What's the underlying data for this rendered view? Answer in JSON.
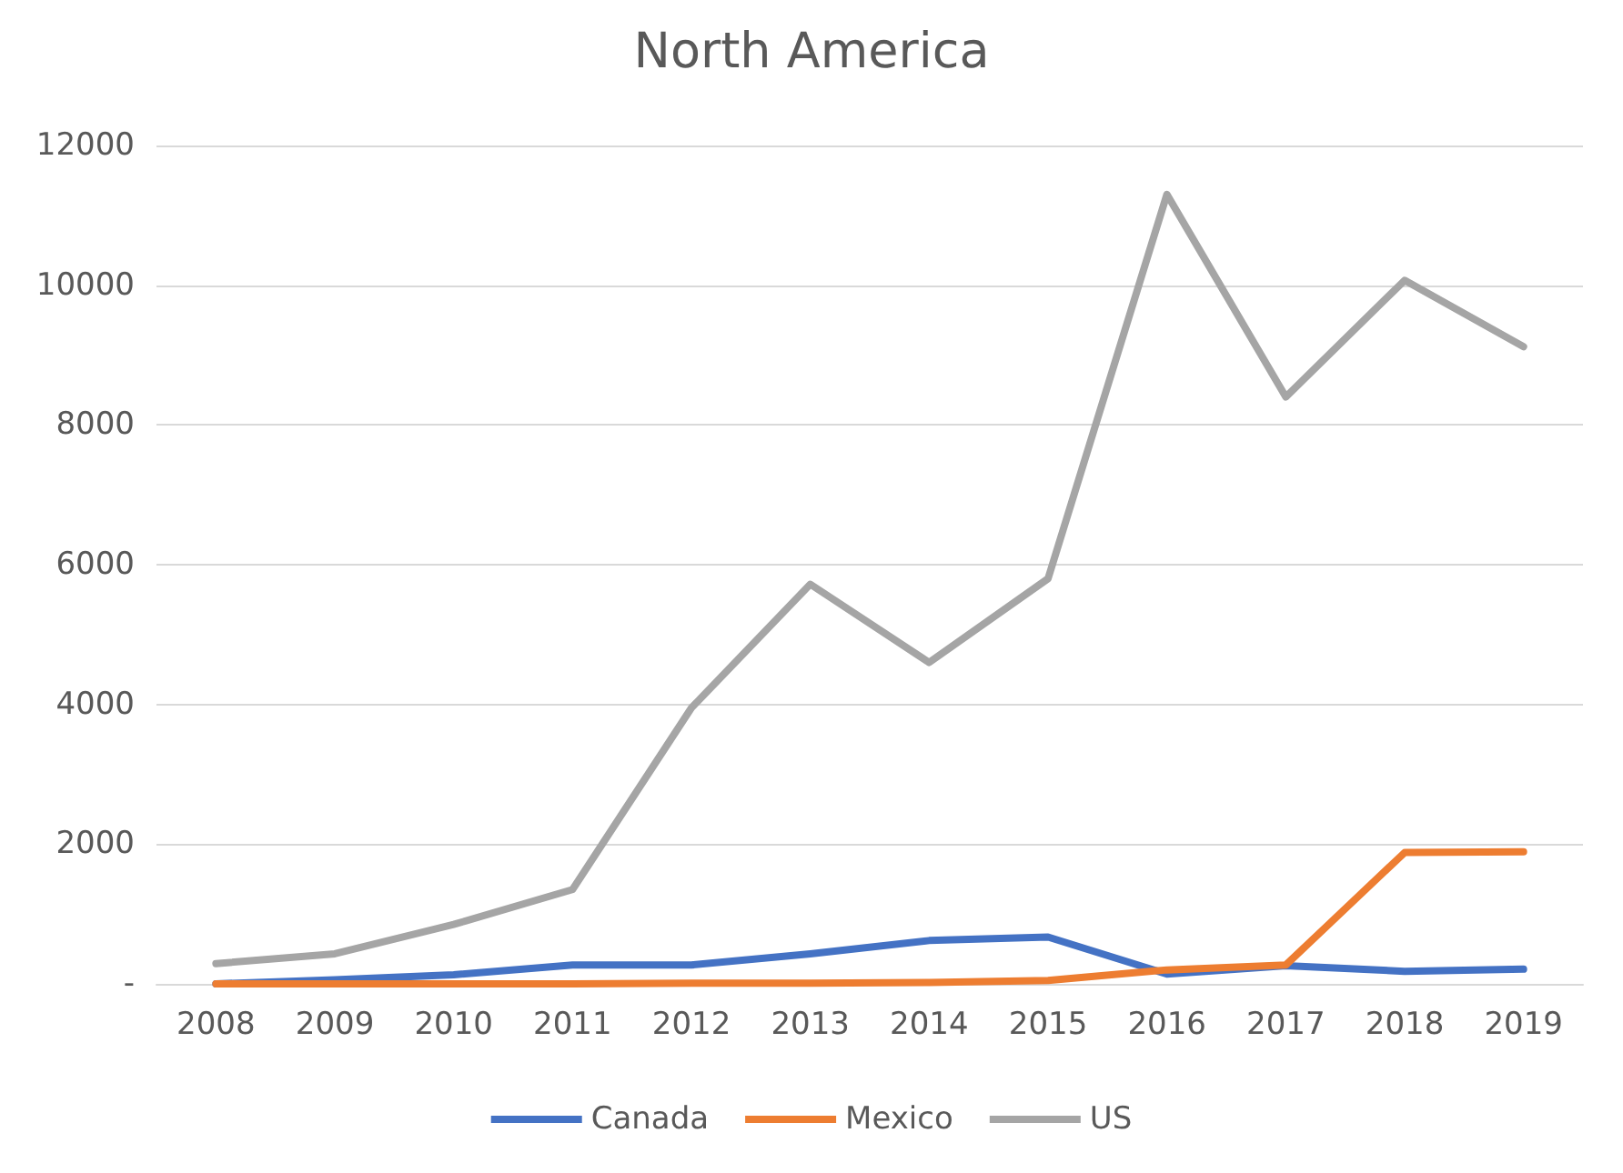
{
  "chart_data": {
    "type": "line",
    "title": "North America",
    "categories": [
      "2008",
      "2009",
      "2010",
      "2011",
      "2012",
      "2013",
      "2014",
      "2015",
      "2016",
      "2017",
      "2018",
      "2019"
    ],
    "series": [
      {
        "name": "Canada",
        "color": "#4472c4",
        "values": [
          0,
          60,
          130,
          270,
          270,
          430,
          620,
          670,
          140,
          260,
          180,
          210
        ]
      },
      {
        "name": "Mexico",
        "color": "#ed7d31",
        "values": [
          0,
          0,
          0,
          0,
          10,
          10,
          20,
          50,
          200,
          270,
          1880,
          1890
        ]
      },
      {
        "name": "US",
        "color": "#a5a5a5",
        "values": [
          290,
          430,
          850,
          1350,
          3950,
          5720,
          4600,
          5800,
          11300,
          8400,
          10070,
          9120
        ]
      }
    ],
    "ylim": [
      0,
      12000
    ],
    "yticks": [
      {
        "value": 0,
        "label": "-"
      },
      2000,
      4000,
      6000,
      8000,
      10000,
      12000
    ],
    "grid": "y",
    "legend": "bottom",
    "marker": "none",
    "line_style": "solid"
  }
}
